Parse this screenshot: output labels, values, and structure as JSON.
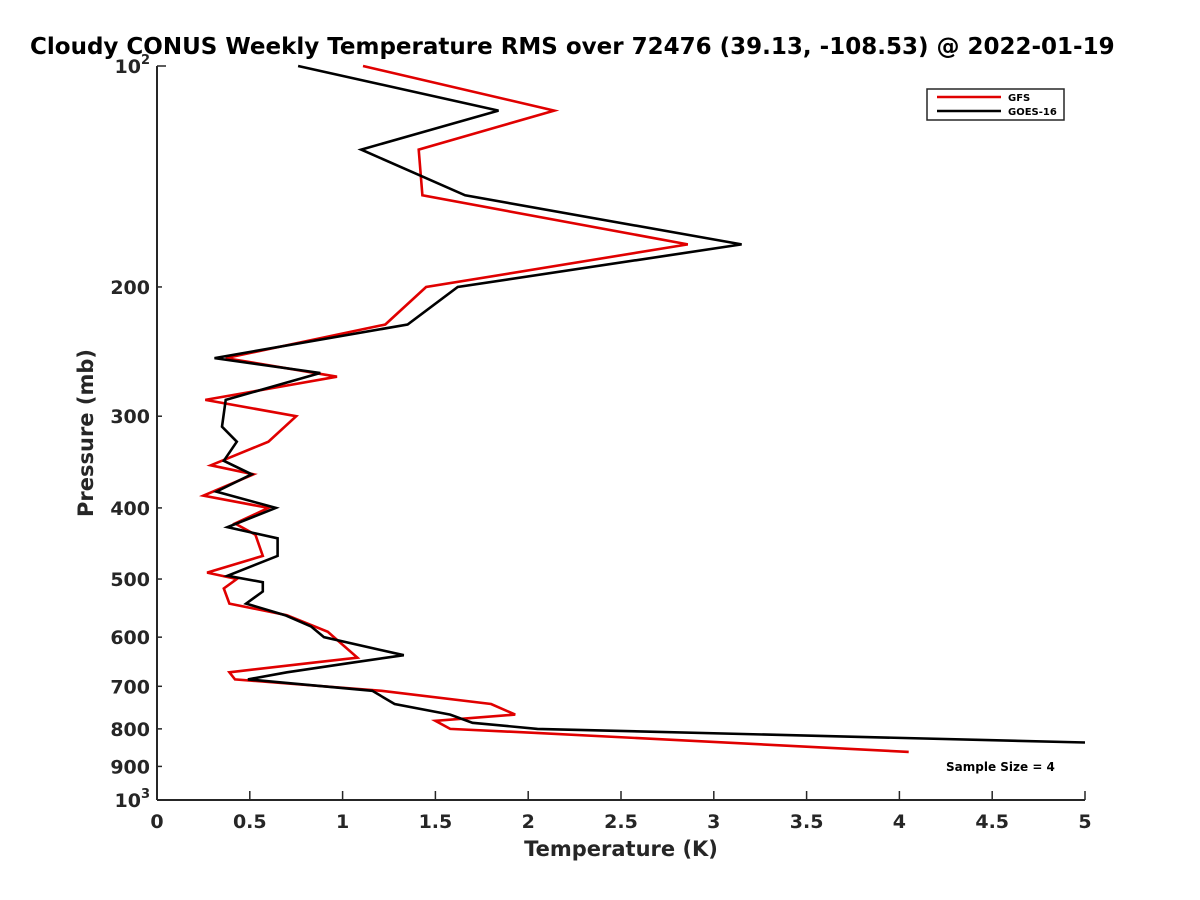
{
  "chart_data": {
    "type": "line",
    "title": "Cloudy CONUS Weekly Temperature RMS over 72476 (39.13, -108.53) @ 2022-01-19",
    "xlabel": "Temperature (K)",
    "ylabel": "Pressure (mb)",
    "xlim": [
      0,
      5
    ],
    "ylim": [
      100,
      1000
    ],
    "y_scale": "log",
    "y_reversed": true,
    "grid": false,
    "legend_position": "top-right",
    "x_ticks": [
      "0",
      "0.5",
      "1",
      "1.5",
      "2",
      "2.5",
      "3",
      "3.5",
      "4",
      "4.5",
      "5"
    ],
    "y_ticks": [
      {
        "value": 100,
        "base": "10",
        "exp": "2"
      },
      {
        "value": 200,
        "label": "200"
      },
      {
        "value": 300,
        "label": "300"
      },
      {
        "value": 400,
        "label": "400"
      },
      {
        "value": 500,
        "label": "500"
      },
      {
        "value": 600,
        "label": "600"
      },
      {
        "value": 700,
        "label": "700"
      },
      {
        "value": 800,
        "label": "800"
      },
      {
        "value": 900,
        "label": "900"
      },
      {
        "value": 1000,
        "base": "10",
        "exp": "3"
      }
    ],
    "annotation": "Sample Size = 4",
    "series": [
      {
        "name": "GFS",
        "color": "#e00000",
        "points": [
          {
            "x": 1.11,
            "y": 100
          },
          {
            "x": 2.14,
            "y": 115
          },
          {
            "x": 1.41,
            "y": 130
          },
          {
            "x": 1.43,
            "y": 150
          },
          {
            "x": 2.86,
            "y": 175
          },
          {
            "x": 1.45,
            "y": 200
          },
          {
            "x": 1.23,
            "y": 225
          },
          {
            "x": 0.37,
            "y": 250
          },
          {
            "x": 0.97,
            "y": 265
          },
          {
            "x": 0.26,
            "y": 285
          },
          {
            "x": 0.75,
            "y": 300
          },
          {
            "x": 0.6,
            "y": 325
          },
          {
            "x": 0.29,
            "y": 350
          },
          {
            "x": 0.52,
            "y": 360
          },
          {
            "x": 0.25,
            "y": 385
          },
          {
            "x": 0.6,
            "y": 400
          },
          {
            "x": 0.42,
            "y": 420
          },
          {
            "x": 0.53,
            "y": 435
          },
          {
            "x": 0.57,
            "y": 465
          },
          {
            "x": 0.27,
            "y": 490
          },
          {
            "x": 0.43,
            "y": 500
          },
          {
            "x": 0.36,
            "y": 515
          },
          {
            "x": 0.39,
            "y": 540
          },
          {
            "x": 0.7,
            "y": 560
          },
          {
            "x": 0.92,
            "y": 590
          },
          {
            "x": 1.08,
            "y": 640
          },
          {
            "x": 0.84,
            "y": 650
          },
          {
            "x": 0.39,
            "y": 670
          },
          {
            "x": 0.42,
            "y": 685
          },
          {
            "x": 1.21,
            "y": 710
          },
          {
            "x": 1.8,
            "y": 740
          },
          {
            "x": 1.93,
            "y": 765
          },
          {
            "x": 1.5,
            "y": 780
          },
          {
            "x": 1.58,
            "y": 800
          },
          {
            "x": 2.03,
            "y": 810
          },
          {
            "x": 4.05,
            "y": 860
          }
        ]
      },
      {
        "name": "GOES-16",
        "color": "#000000",
        "points": [
          {
            "x": 0.76,
            "y": 100
          },
          {
            "x": 1.84,
            "y": 115
          },
          {
            "x": 1.1,
            "y": 130
          },
          {
            "x": 1.66,
            "y": 150
          },
          {
            "x": 3.15,
            "y": 175
          },
          {
            "x": 1.62,
            "y": 200
          },
          {
            "x": 1.35,
            "y": 225
          },
          {
            "x": 0.31,
            "y": 250
          },
          {
            "x": 0.88,
            "y": 262
          },
          {
            "x": 0.37,
            "y": 285
          },
          {
            "x": 0.35,
            "y": 310
          },
          {
            "x": 0.43,
            "y": 325
          },
          {
            "x": 0.36,
            "y": 345
          },
          {
            "x": 0.51,
            "y": 360
          },
          {
            "x": 0.32,
            "y": 380
          },
          {
            "x": 0.64,
            "y": 400
          },
          {
            "x": 0.38,
            "y": 425
          },
          {
            "x": 0.65,
            "y": 440
          },
          {
            "x": 0.65,
            "y": 465
          },
          {
            "x": 0.38,
            "y": 495
          },
          {
            "x": 0.57,
            "y": 505
          },
          {
            "x": 0.57,
            "y": 520
          },
          {
            "x": 0.48,
            "y": 540
          },
          {
            "x": 0.69,
            "y": 560
          },
          {
            "x": 0.83,
            "y": 580
          },
          {
            "x": 0.9,
            "y": 600
          },
          {
            "x": 1.33,
            "y": 635
          },
          {
            "x": 1.05,
            "y": 650
          },
          {
            "x": 0.7,
            "y": 670
          },
          {
            "x": 0.49,
            "y": 685
          },
          {
            "x": 1.16,
            "y": 710
          },
          {
            "x": 1.28,
            "y": 740
          },
          {
            "x": 1.58,
            "y": 765
          },
          {
            "x": 1.7,
            "y": 785
          },
          {
            "x": 2.05,
            "y": 800
          },
          {
            "x": 5.0,
            "y": 835
          }
        ]
      }
    ]
  }
}
